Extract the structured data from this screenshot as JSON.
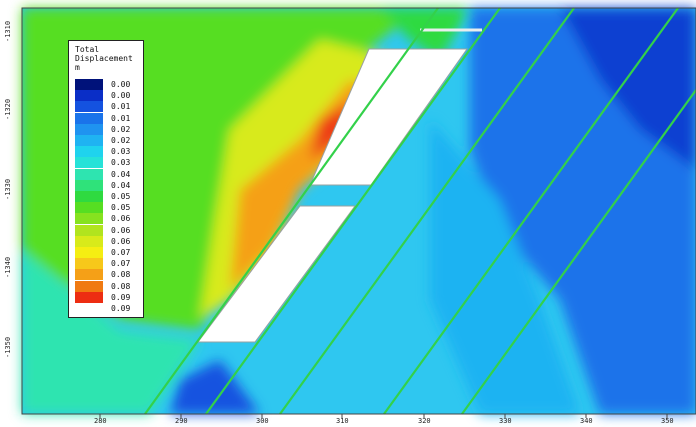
{
  "legend": {
    "title_line1": "Total",
    "title_line2": "Displacement",
    "title_line3": "m",
    "entries": [
      {
        "value": "0.00",
        "color": "#00127a"
      },
      {
        "value": "0.00",
        "color": "#0a2ec7"
      },
      {
        "value": "0.01",
        "color": "#1452e0"
      },
      {
        "value": "0.01",
        "color": "#1a73ea"
      },
      {
        "value": "0.02",
        "color": "#1f93f0"
      },
      {
        "value": "0.02",
        "color": "#1fb3f2"
      },
      {
        "value": "0.03",
        "color": "#1fd3ee"
      },
      {
        "value": "0.03",
        "color": "#26e2d8"
      },
      {
        "value": "0.04",
        "color": "#2ee4b0"
      },
      {
        "value": "0.04",
        "color": "#2fe27a"
      },
      {
        "value": "0.05",
        "color": "#2fda40"
      },
      {
        "value": "0.05",
        "color": "#56de22"
      },
      {
        "value": "0.06",
        "color": "#86e21f"
      },
      {
        "value": "0.06",
        "color": "#b1e41e"
      },
      {
        "value": "0.06",
        "color": "#d8ea1a"
      },
      {
        "value": "0.07",
        "color": "#f5ee12"
      },
      {
        "value": "0.07",
        "color": "#f7c81a"
      },
      {
        "value": "0.08",
        "color": "#f5a017"
      },
      {
        "value": "0.08",
        "color": "#f07a12"
      },
      {
        "value": "0.09",
        "color": "#ed2d12"
      },
      {
        "value": "0.09",
        "color": "#ffffff"
      }
    ]
  },
  "axes": {
    "y_ticks": [
      "-1310",
      "-1320",
      "-1330",
      "-1340",
      "-1350"
    ],
    "x_ticks": [
      "280",
      "290",
      "300",
      "310",
      "320",
      "330",
      "340",
      "350"
    ]
  },
  "colors": {
    "joint_line": "#33d14a",
    "excavation": "#ffffff"
  }
}
